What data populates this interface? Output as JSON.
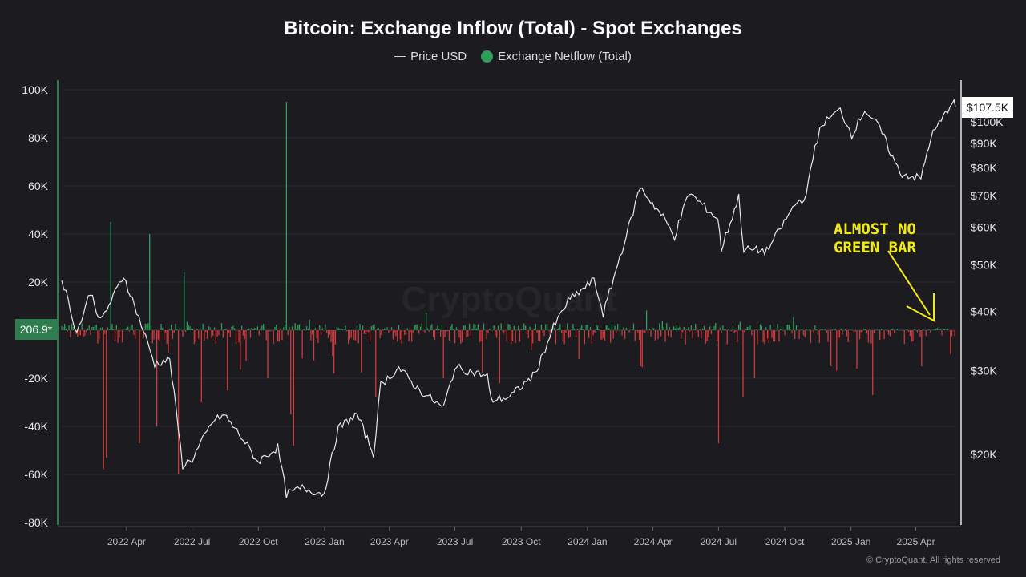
{
  "chart_data": {
    "type": "bar",
    "title": "Bitcoin: Exchange Inflow (Total) - Spot Exchanges",
    "legend": [
      {
        "label": "Price USD",
        "color": "#cfcfcf",
        "style": "line"
      },
      {
        "label": "Exchange Netflow (Total)",
        "color": "#2e9e5b",
        "style": "dot"
      }
    ],
    "left_axis": {
      "ticks": [
        "100K",
        "80K",
        "60K",
        "40K",
        "20K",
        "",
        "-20K",
        "-40K",
        "-60K",
        "-80K"
      ],
      "range": [
        -80000,
        100000
      ]
    },
    "right_axis": {
      "scale": "log",
      "ticks": [
        "$100K",
        "$90K",
        "$80K",
        "$70K",
        "$60K",
        "$50K",
        "$40K",
        "$30K",
        "$20K"
      ],
      "tick_values": [
        100000,
        90000,
        80000,
        70000,
        60000,
        50000,
        40000,
        30000,
        20000
      ]
    },
    "x_axis": {
      "ticks": [
        "2022 Apr",
        "2022 Jul",
        "2022 Oct",
        "2023 Jan",
        "2023 Apr",
        "2023 Jul",
        "2023 Oct",
        "2024 Jan",
        "2024 Apr",
        "2024 Jul",
        "2024 Oct",
        "2025 Jan",
        "2025 Apr"
      ],
      "range": [
        "2022-01-01",
        "2025-05-26"
      ]
    },
    "current_netflow_label": "206.9*",
    "current_price_label": "$107.5K",
    "price_series": [
      {
        "date": "2022-01-01",
        "v": 47000
      },
      {
        "date": "2022-01-22",
        "v": 36000
      },
      {
        "date": "2022-02-10",
        "v": 44000
      },
      {
        "date": "2022-02-24",
        "v": 38000
      },
      {
        "date": "2022-03-28",
        "v": 47500
      },
      {
        "date": "2022-04-15",
        "v": 40000
      },
      {
        "date": "2022-05-10",
        "v": 31000
      },
      {
        "date": "2022-05-31",
        "v": 31700
      },
      {
        "date": "2022-06-18",
        "v": 19000
      },
      {
        "date": "2022-07-01",
        "v": 19500
      },
      {
        "date": "2022-07-30",
        "v": 23500
      },
      {
        "date": "2022-08-15",
        "v": 24200
      },
      {
        "date": "2022-09-10",
        "v": 21500
      },
      {
        "date": "2022-09-30",
        "v": 19300
      },
      {
        "date": "2022-10-28",
        "v": 20700
      },
      {
        "date": "2022-11-09",
        "v": 16500
      },
      {
        "date": "2022-12-01",
        "v": 17000
      },
      {
        "date": "2022-12-31",
        "v": 16500
      },
      {
        "date": "2023-01-20",
        "v": 22700
      },
      {
        "date": "2023-02-15",
        "v": 24300
      },
      {
        "date": "2023-03-10",
        "v": 20000
      },
      {
        "date": "2023-03-20",
        "v": 28000
      },
      {
        "date": "2023-04-14",
        "v": 30400
      },
      {
        "date": "2023-05-10",
        "v": 27500
      },
      {
        "date": "2023-06-15",
        "v": 25000
      },
      {
        "date": "2023-07-01",
        "v": 30500
      },
      {
        "date": "2023-08-15",
        "v": 29200
      },
      {
        "date": "2023-08-20",
        "v": 26000
      },
      {
        "date": "2023-09-15",
        "v": 26400
      },
      {
        "date": "2023-10-20",
        "v": 29500
      },
      {
        "date": "2023-11-15",
        "v": 37000
      },
      {
        "date": "2023-12-05",
        "v": 42000
      },
      {
        "date": "2024-01-10",
        "v": 46500
      },
      {
        "date": "2024-01-23",
        "v": 39500
      },
      {
        "date": "2024-02-15",
        "v": 52000
      },
      {
        "date": "2024-03-01",
        "v": 62000
      },
      {
        "date": "2024-03-14",
        "v": 73000
      },
      {
        "date": "2024-04-15",
        "v": 63000
      },
      {
        "date": "2024-05-01",
        "v": 57500
      },
      {
        "date": "2024-05-21",
        "v": 71000
      },
      {
        "date": "2024-06-30",
        "v": 62500
      },
      {
        "date": "2024-07-05",
        "v": 54000
      },
      {
        "date": "2024-07-29",
        "v": 69500
      },
      {
        "date": "2024-08-05",
        "v": 54000
      },
      {
        "date": "2024-09-06",
        "v": 53500
      },
      {
        "date": "2024-10-15",
        "v": 67000
      },
      {
        "date": "2024-10-31",
        "v": 70000
      },
      {
        "date": "2024-11-12",
        "v": 89000
      },
      {
        "date": "2024-11-22",
        "v": 99000
      },
      {
        "date": "2024-12-17",
        "v": 106000
      },
      {
        "date": "2025-01-02",
        "v": 94000
      },
      {
        "date": "2025-01-20",
        "v": 106000
      },
      {
        "date": "2025-02-10",
        "v": 97000
      },
      {
        "date": "2025-02-28",
        "v": 84000
      },
      {
        "date": "2025-03-10",
        "v": 78000
      },
      {
        "date": "2025-04-08",
        "v": 76000
      },
      {
        "date": "2025-04-22",
        "v": 93000
      },
      {
        "date": "2025-05-12",
        "v": 104000
      },
      {
        "date": "2025-05-22",
        "v": 111000
      },
      {
        "date": "2025-05-26",
        "v": 107500
      }
    ],
    "netflow_spikes": [
      {
        "date": "2022-02-28",
        "v": -58000
      },
      {
        "date": "2022-03-01",
        "v": 56000
      },
      {
        "date": "2022-03-04",
        "v": -53000
      },
      {
        "date": "2022-03-10",
        "v": 45000
      },
      {
        "date": "2022-04-20",
        "v": -47000
      },
      {
        "date": "2022-05-04",
        "v": 40000
      },
      {
        "date": "2022-05-13",
        "v": -40000
      },
      {
        "date": "2022-06-13",
        "v": -60000
      },
      {
        "date": "2022-06-20",
        "v": 24000
      },
      {
        "date": "2022-07-15",
        "v": -30000
      },
      {
        "date": "2022-08-20",
        "v": -25000
      },
      {
        "date": "2022-10-15",
        "v": -20000
      },
      {
        "date": "2022-11-09",
        "v": 95000
      },
      {
        "date": "2022-11-10",
        "v": -72000
      },
      {
        "date": "2022-11-15",
        "v": -35000
      },
      {
        "date": "2022-11-20",
        "v": -48000
      },
      {
        "date": "2023-01-15",
        "v": -18000
      },
      {
        "date": "2023-03-13",
        "v": -28000
      },
      {
        "date": "2023-06-15",
        "v": -20000
      },
      {
        "date": "2023-09-01",
        "v": -22000
      },
      {
        "date": "2024-03-15",
        "v": -15000
      },
      {
        "date": "2024-07-01",
        "v": -47000
      },
      {
        "date": "2024-08-05",
        "v": -28000
      },
      {
        "date": "2024-08-20",
        "v": -20000
      },
      {
        "date": "2024-12-05",
        "v": -15000
      },
      {
        "date": "2025-01-10",
        "v": -16000
      },
      {
        "date": "2025-02-01",
        "v": -27000
      },
      {
        "date": "2025-04-10",
        "v": -15000
      },
      {
        "date": "2025-05-20",
        "v": -10000
      }
    ]
  },
  "annotation": "ALMOST NO\nGREEN BAR",
  "watermark": "CryptoQuant",
  "copyright": "© CryptoQuant. All rights reserved"
}
